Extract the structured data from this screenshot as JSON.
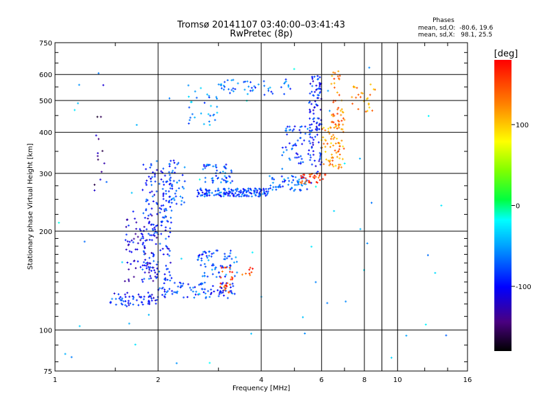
{
  "header": {
    "title_line1": "Tromsø 20141107 03:40:00–03:41:43",
    "title_line2": "RwPretec (8p)"
  },
  "stats": {
    "heading": "Phases",
    "line_o": "mean, sd,O:  -80.6, 19.6",
    "line_x": "mean, sd,X:   98.1, 25.5"
  },
  "chart_data": {
    "type": "scatter",
    "xlabel": "Frequency [MHz]",
    "ylabel": "Stationary phase Virtual Height [km]",
    "x_scale": "log",
    "y_scale": "log",
    "xlim": [
      1,
      16
    ],
    "ylim": [
      75,
      750
    ],
    "x_ticks": [
      1,
      2,
      4,
      6,
      8,
      10,
      16
    ],
    "y_ticks": [
      75,
      100,
      200,
      300,
      400,
      500,
      600,
      750
    ],
    "grid": true,
    "colorbar": {
      "label": "[deg]",
      "range": [
        -180,
        180
      ],
      "ticks": [
        100,
        0,
        -100
      ]
    },
    "series": [
      {
        "traces": [
          {
            "x0": 1.45,
            "x1": 2.0,
            "y0": 118,
            "y1": 130,
            "phase": -95,
            "n": 60
          },
          {
            "x0": 1.8,
            "x1": 2.2,
            "y0": 140,
            "y1": 330,
            "phase": -90,
            "n": 180
          },
          {
            "x0": 1.6,
            "x1": 2.0,
            "y0": 140,
            "y1": 230,
            "phase": -110,
            "n": 80
          },
          {
            "x0": 2.0,
            "x1": 3.4,
            "y0": 125,
            "y1": 140,
            "phase": -85,
            "n": 90
          },
          {
            "x0": 2.6,
            "x1": 3.4,
            "y0": 145,
            "y1": 175,
            "phase": -75,
            "n": 70
          },
          {
            "x0": 2.6,
            "x1": 4.2,
            "y0": 255,
            "y1": 270,
            "phase": -80,
            "n": 160
          },
          {
            "x0": 4.2,
            "x1": 5.6,
            "y0": 265,
            "y1": 295,
            "phase": -70,
            "n": 60
          },
          {
            "x0": 5.2,
            "x1": 6.2,
            "y0": 280,
            "y1": 300,
            "phase": 150,
            "n": 35
          },
          {
            "x0": 2.7,
            "x1": 3.3,
            "y0": 280,
            "y1": 320,
            "phase": -75,
            "n": 50
          },
          {
            "x0": 5.5,
            "x1": 6.0,
            "y0": 300,
            "y1": 600,
            "phase": -95,
            "n": 100
          },
          {
            "x0": 4.6,
            "x1": 5.6,
            "y0": 320,
            "y1": 420,
            "phase": -80,
            "n": 60
          },
          {
            "x0": 6.0,
            "x1": 7.0,
            "y0": 310,
            "y1": 420,
            "phase": 120,
            "n": 70
          },
          {
            "x0": 6.4,
            "x1": 7.0,
            "y0": 400,
            "y1": 620,
            "phase": 130,
            "n": 45
          },
          {
            "x0": 3.0,
            "x1": 5.0,
            "y0": 520,
            "y1": 580,
            "phase": -70,
            "n": 50
          },
          {
            "x0": 2.4,
            "x1": 3.0,
            "y0": 420,
            "y1": 560,
            "phase": -60,
            "n": 30
          },
          {
            "x0": 3.0,
            "x1": 3.3,
            "y0": 130,
            "y1": 155,
            "phase": 155,
            "n": 25
          },
          {
            "x0": 3.5,
            "x1": 3.8,
            "y0": 145,
            "y1": 160,
            "phase": 150,
            "n": 8
          },
          {
            "x0": 7.3,
            "x1": 8.6,
            "y0": 460,
            "y1": 560,
            "phase": 120,
            "n": 25
          },
          {
            "x0": 2.1,
            "x1": 2.4,
            "y0": 240,
            "y1": 330,
            "phase": -80,
            "n": 40
          },
          {
            "x0": 1.3,
            "x1": 1.4,
            "y0": 250,
            "y1": 580,
            "phase": -140,
            "n": 14
          },
          {
            "x0": 1.0,
            "x1": 14.0,
            "y0": 78,
            "y1": 640,
            "phase": -40,
            "n": 60
          }
        ]
      }
    ]
  }
}
